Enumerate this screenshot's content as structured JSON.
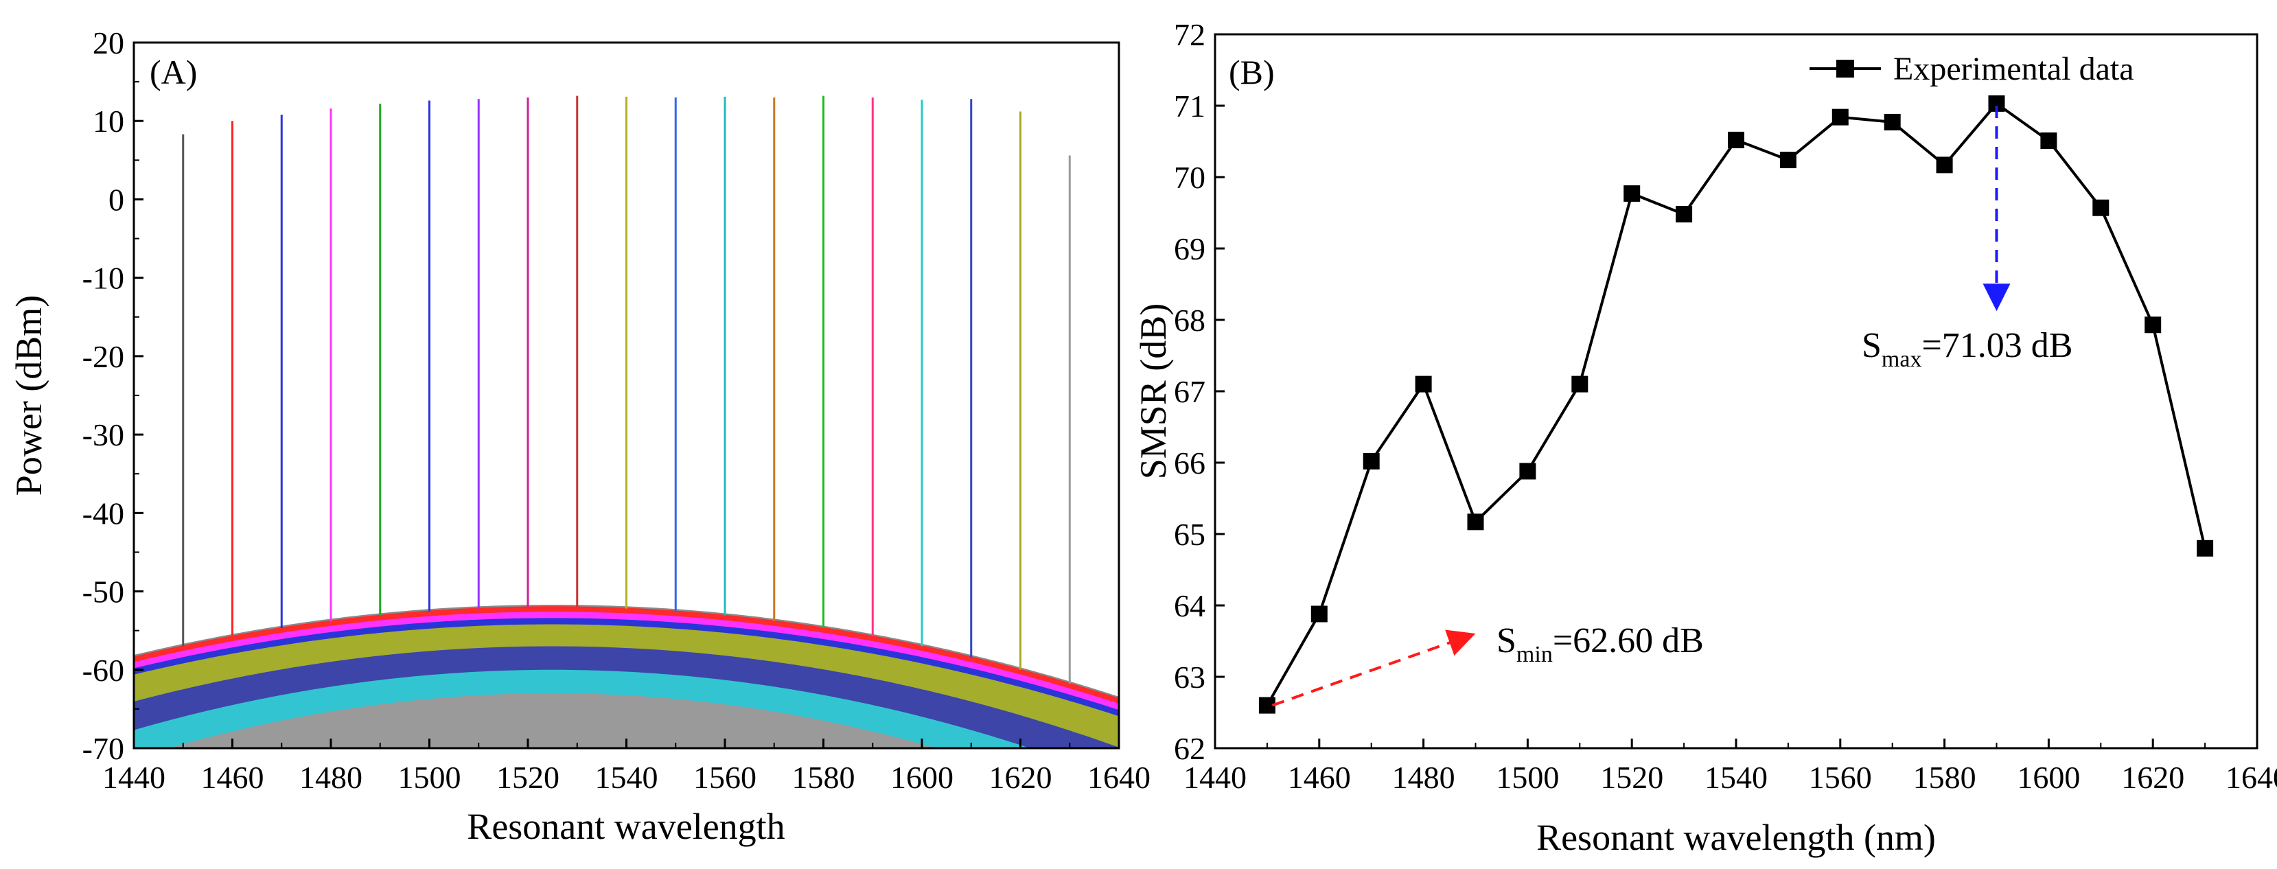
{
  "chart_data": [
    {
      "type": "line",
      "panel_label": "(A)",
      "title": "",
      "xlabel": "Resonant wavelength",
      "ylabel": "Power (dBm)",
      "xlim": [
        1440,
        1640
      ],
      "ylim": [
        -70,
        20
      ],
      "xticks": [
        "1440",
        "1460",
        "1480",
        "1500",
        "1520",
        "1540",
        "1560",
        "1580",
        "1600",
        "1620",
        "1640"
      ],
      "yticks": [
        "20",
        "10",
        "0",
        "-10",
        "-20",
        "-30",
        "-40",
        "-50",
        "-60",
        "-70"
      ],
      "grid": false,
      "noise_floor_center_dbm": -52,
      "noise_floor_spread_dbm": 8,
      "series": [
        {
          "name": "1450 nm",
          "peak_wavelength": 1450,
          "peak_power": 8.3,
          "color": "#555555"
        },
        {
          "name": "1460 nm",
          "peak_wavelength": 1460,
          "peak_power": 10.0,
          "color": "#ff2222"
        },
        {
          "name": "1470 nm",
          "peak_wavelength": 1470,
          "peak_power": 10.8,
          "color": "#2a35d8"
        },
        {
          "name": "1480 nm",
          "peak_wavelength": 1480,
          "peak_power": 11.6,
          "color": "#ff33ff"
        },
        {
          "name": "1490 nm",
          "peak_wavelength": 1490,
          "peak_power": 12.2,
          "color": "#22aa22"
        },
        {
          "name": "1500 nm",
          "peak_wavelength": 1500,
          "peak_power": 12.6,
          "color": "#2a35d8"
        },
        {
          "name": "1510 nm",
          "peak_wavelength": 1510,
          "peak_power": 12.8,
          "color": "#9933ff"
        },
        {
          "name": "1520 nm",
          "peak_wavelength": 1520,
          "peak_power": 13.0,
          "color": "#cc2299"
        },
        {
          "name": "1530 nm",
          "peak_wavelength": 1530,
          "peak_power": 13.2,
          "color": "#cc3333"
        },
        {
          "name": "1540 nm",
          "peak_wavelength": 1540,
          "peak_power": 13.1,
          "color": "#b8b020"
        },
        {
          "name": "1550 nm",
          "peak_wavelength": 1550,
          "peak_power": 13.0,
          "color": "#3366ee"
        },
        {
          "name": "1560 nm",
          "peak_wavelength": 1560,
          "peak_power": 13.1,
          "color": "#22bbbb"
        },
        {
          "name": "1570 nm",
          "peak_wavelength": 1570,
          "peak_power": 13.0,
          "color": "#cc7722"
        },
        {
          "name": "1580 nm",
          "peak_wavelength": 1580,
          "peak_power": 13.2,
          "color": "#22bb22"
        },
        {
          "name": "1590 nm",
          "peak_wavelength": 1590,
          "peak_power": 13.0,
          "color": "#ff3388"
        },
        {
          "name": "1600 nm",
          "peak_wavelength": 1600,
          "peak_power": 12.7,
          "color": "#22cccc"
        },
        {
          "name": "1610 nm",
          "peak_wavelength": 1610,
          "peak_power": 12.8,
          "color": "#3344cc"
        },
        {
          "name": "1620 nm",
          "peak_wavelength": 1620,
          "peak_power": 11.2,
          "color": "#aaaa22"
        },
        {
          "name": "1630 nm",
          "peak_wavelength": 1630,
          "peak_power": 5.6,
          "color": "#999999"
        }
      ]
    },
    {
      "type": "line",
      "panel_label": "(B)",
      "title": "",
      "xlabel": "Resonant wavelength (nm)",
      "ylabel": "SMSR (dB)",
      "xlim": [
        1440,
        1640
      ],
      "ylim": [
        62,
        72
      ],
      "xticks": [
        "1440",
        "1460",
        "1480",
        "1500",
        "1520",
        "1540",
        "1560",
        "1580",
        "1600",
        "1620",
        "1640"
      ],
      "yticks": [
        "72",
        "71",
        "70",
        "69",
        "68",
        "67",
        "66",
        "65",
        "64",
        "63",
        "62"
      ],
      "grid": false,
      "legend": {
        "position": "top-right",
        "entries": [
          "Experimental data"
        ]
      },
      "series": [
        {
          "name": "Experimental data",
          "color": "#000000",
          "marker": "square",
          "x": [
            1450,
            1460,
            1470,
            1480,
            1490,
            1500,
            1510,
            1520,
            1530,
            1540,
            1550,
            1560,
            1570,
            1580,
            1590,
            1600,
            1610,
            1620,
            1630
          ],
          "y": [
            62.6,
            63.88,
            66.02,
            67.1,
            65.17,
            65.88,
            67.1,
            69.77,
            69.48,
            70.52,
            70.24,
            70.84,
            70.77,
            70.17,
            71.03,
            70.51,
            69.57,
            67.93,
            64.8
          ]
        }
      ],
      "annotations": [
        {
          "id": "smax",
          "prefix": "S",
          "subscript": "max",
          "text": "=71.03 dB",
          "color": "#1a1aff",
          "arrow_from": [
            1590,
            71.0
          ],
          "arrow_to": [
            1590,
            68.2
          ]
        },
        {
          "id": "smin",
          "prefix": "S",
          "subscript": "min",
          "text": "=62.60 dB",
          "color": "#ff1a1a",
          "arrow_from": [
            1451,
            62.6
          ],
          "arrow_to": [
            1489,
            63.58
          ]
        }
      ]
    }
  ]
}
